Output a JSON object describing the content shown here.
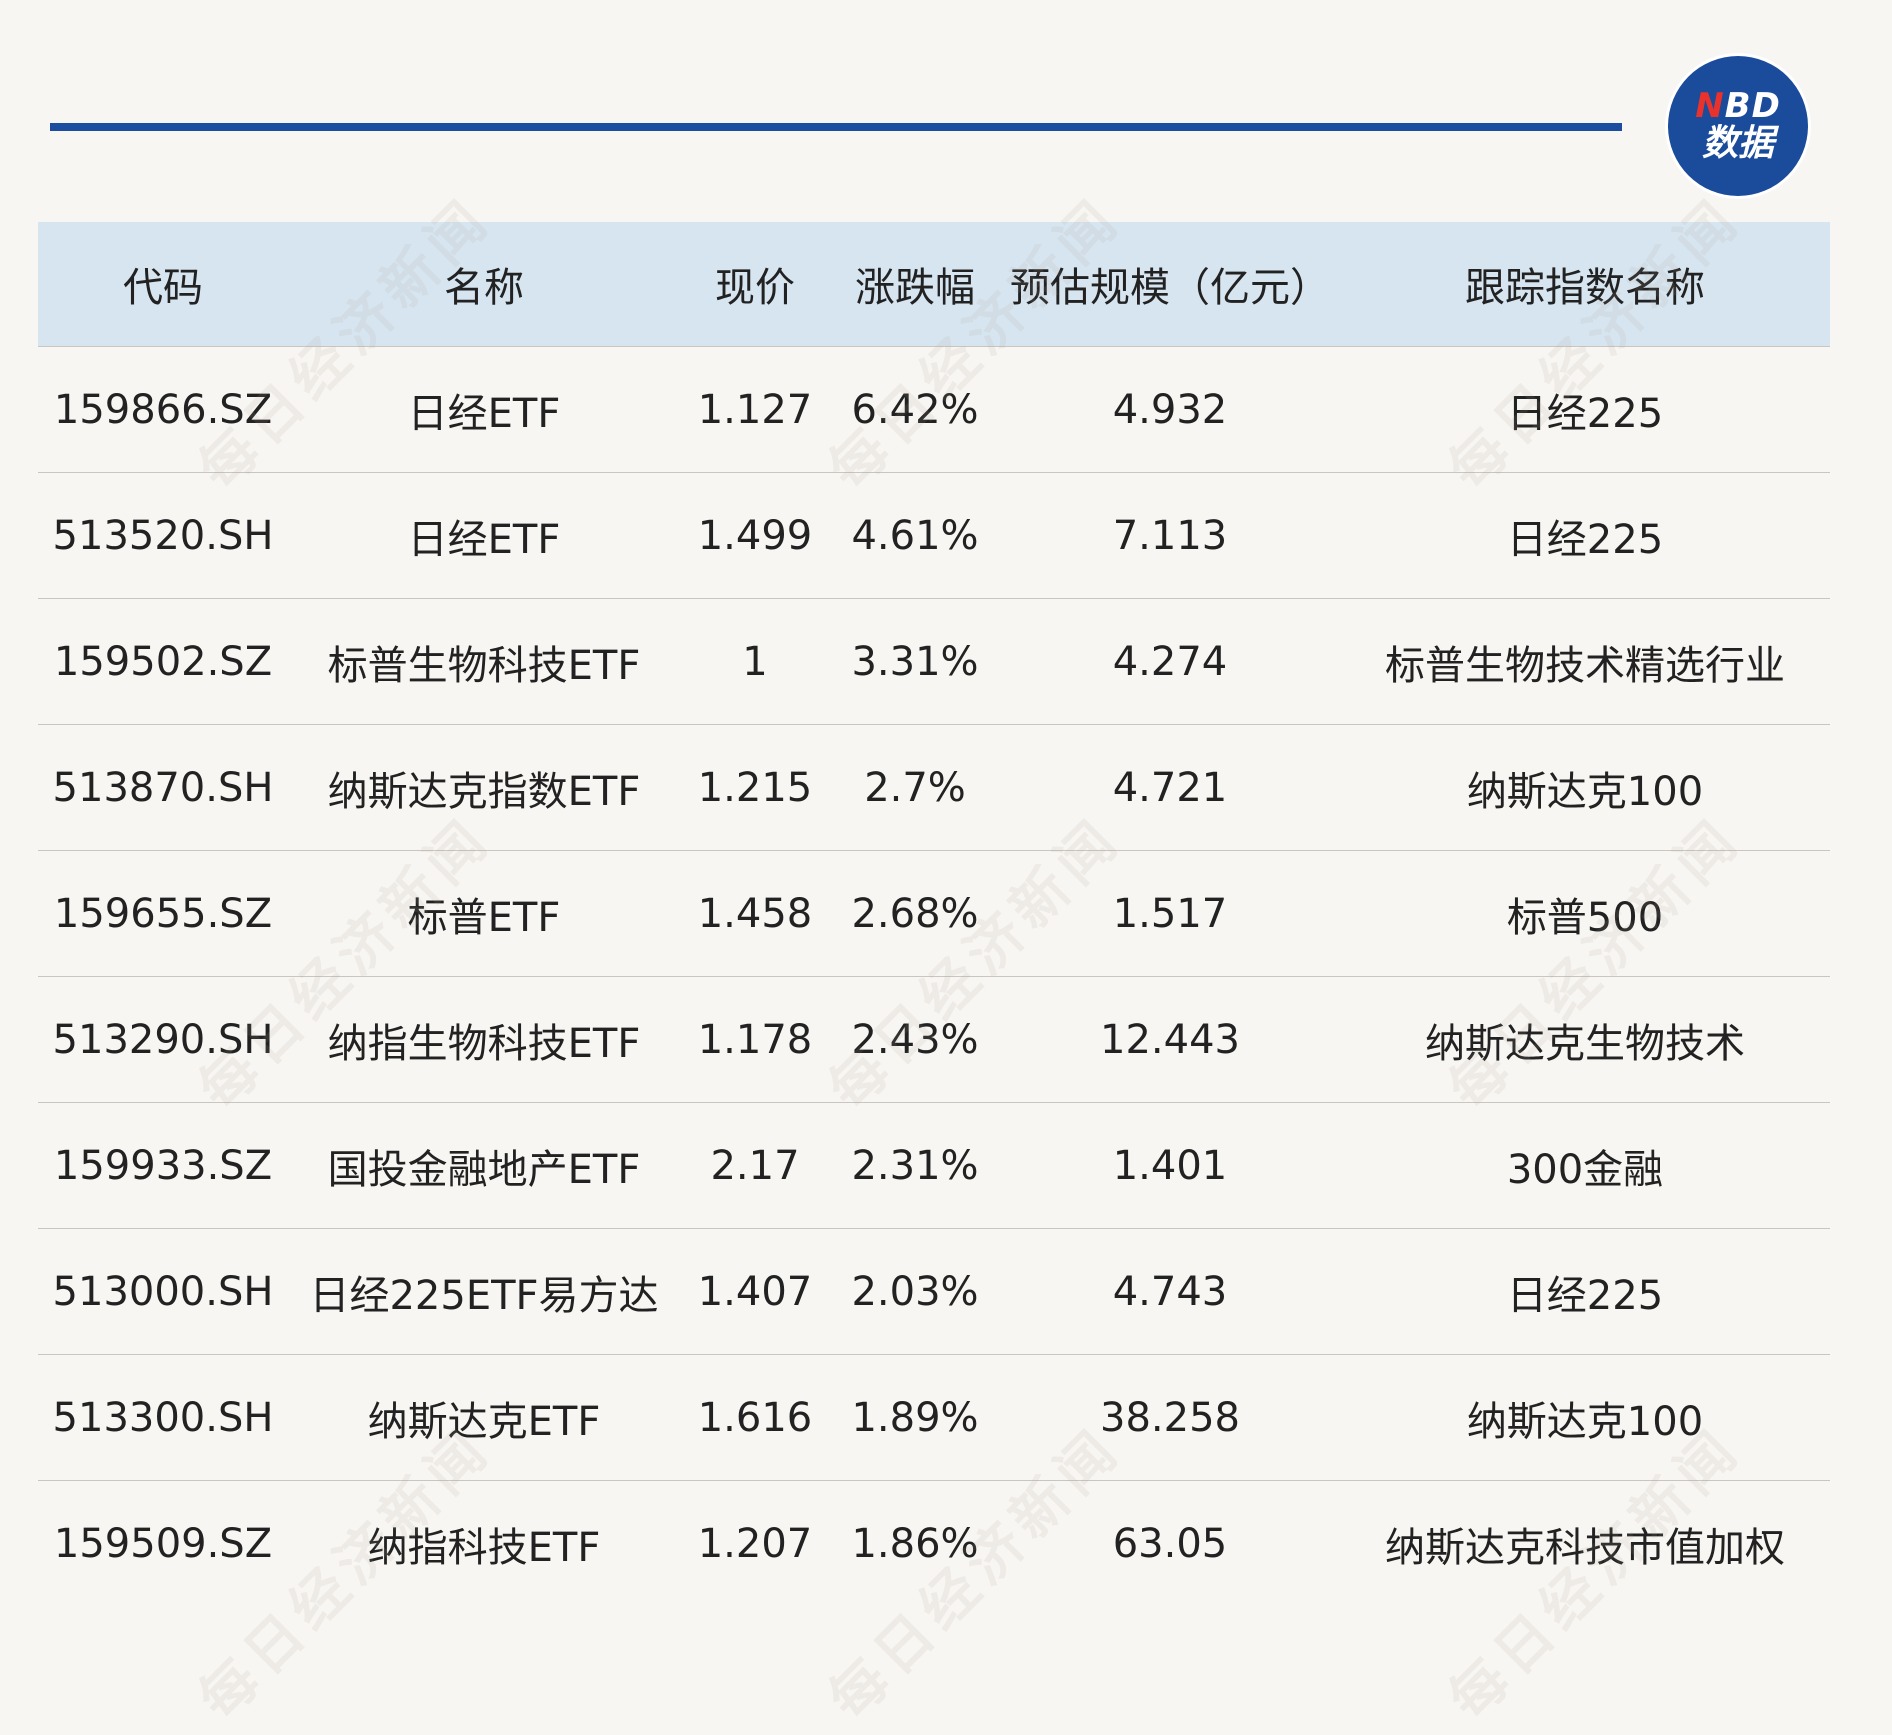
{
  "logo": {
    "brand_prefix": "N",
    "brand_rest": "BD",
    "sub": "数据"
  },
  "watermark": "每日经济新闻",
  "table": {
    "headers": [
      "代码",
      "名称",
      "现价",
      "涨跌幅",
      "预估规模（亿元）",
      "跟踪指数名称"
    ],
    "rows": [
      [
        "159866.SZ",
        "日经ETF",
        "1.127",
        "6.42%",
        "4.932",
        "日经225"
      ],
      [
        "513520.SH",
        "日经ETF",
        "1.499",
        "4.61%",
        "7.113",
        "日经225"
      ],
      [
        "159502.SZ",
        "标普生物科技ETF",
        "1",
        "3.31%",
        "4.274",
        "标普生物技术精选行业"
      ],
      [
        "513870.SH",
        "纳斯达克指数ETF",
        "1.215",
        "2.7%",
        "4.721",
        "纳斯达克100"
      ],
      [
        "159655.SZ",
        "标普ETF",
        "1.458",
        "2.68%",
        "1.517",
        "标普500"
      ],
      [
        "513290.SH",
        "纳指生物科技ETF",
        "1.178",
        "2.43%",
        "12.443",
        "纳斯达克生物技术"
      ],
      [
        "159933.SZ",
        "国投金融地产ETF",
        "2.17",
        "2.31%",
        "1.401",
        "300金融"
      ],
      [
        "513000.SH",
        "日经225ETF易方达",
        "1.407",
        "2.03%",
        "4.743",
        "日经225"
      ],
      [
        "513300.SH",
        "纳斯达克ETF",
        "1.616",
        "1.89%",
        "38.258",
        "纳斯达克100"
      ],
      [
        "159509.SZ",
        "纳指科技ETF",
        "1.207",
        "1.86%",
        "63.05",
        "纳斯达克科技市值加权"
      ]
    ]
  },
  "colors": {
    "accent": "#1d4d9e",
    "header_bg": "#d7e5f1",
    "page_bg": "#f8f6f3",
    "logo_red": "#e8322b"
  }
}
